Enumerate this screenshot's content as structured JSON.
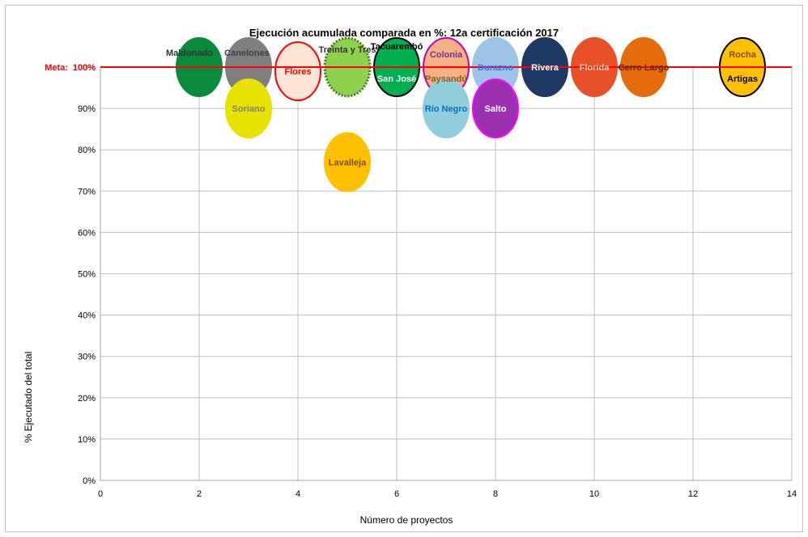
{
  "chart_data": {
    "type": "scatter",
    "title": "Ejecución  acumulada comparada en %: 12a  certificación 2017",
    "xlabel": "Número de proyectos",
    "ylabel": "% Ejecutado del total",
    "xlim": [
      0,
      14
    ],
    "ylim": [
      0,
      100
    ],
    "x_ticks": [
      "0",
      "2",
      "4",
      "6",
      "8",
      "10",
      "12",
      "14"
    ],
    "y_ticks": [
      "0%",
      "10%",
      "20%",
      "30%",
      "40%",
      "50%",
      "60%",
      "70%",
      "80%",
      "90%",
      "100%"
    ],
    "grid": true,
    "reference_line": {
      "label": "Meta:",
      "value_label": "100%",
      "y": 100,
      "color": "#ff0000"
    },
    "points": [
      {
        "name": "Maldonado",
        "x": 2,
        "y": 100,
        "fill": "#0a8a3c",
        "stroke": "#0a8a3c",
        "text_color": "#333333"
      },
      {
        "name": "Canelones",
        "x": 3,
        "y": 100,
        "fill": "#7f7f7f",
        "stroke": "#7f7f7f",
        "text_color": "#404040"
      },
      {
        "name": "Soriano",
        "x": 3,
        "y": 90,
        "fill": "#e8e200",
        "stroke": "#e8e200",
        "text_color": "#7f7f7f"
      },
      {
        "name": "Flores",
        "x": 4,
        "y": 99,
        "fill": "#fce4d6",
        "stroke": "#ff0000",
        "text_color": "#ff0000"
      },
      {
        "name": "Treinta y Tres",
        "x": 5,
        "y": 100,
        "fill": "#8fd14f",
        "stroke": "#3a7a1a",
        "stroke_style": "dotted",
        "text_color": "#333333"
      },
      {
        "name": "Lavalleja",
        "x": 5,
        "y": 77,
        "fill": "#ffc000",
        "stroke": "#ffc000",
        "text_color": "#7f4f00"
      },
      {
        "name": "Tacuarembó",
        "x": 6,
        "y": 100,
        "fill": "#00b050",
        "stroke": "#000000",
        "text_color": "#000000"
      },
      {
        "name": "San José",
        "x": 6,
        "y": 100,
        "fill": "#00b050",
        "stroke": "#000000",
        "text_color": "#ffffff"
      },
      {
        "name": "Colonia",
        "x": 7,
        "y": 100,
        "fill": "#f4b183",
        "stroke": "#c000c0",
        "text_color": "#7030a0"
      },
      {
        "name": "Paysandú",
        "x": 7,
        "y": 100,
        "fill": "#f4b183",
        "stroke": "#c000c0",
        "text_color": "#8a5a1a"
      },
      {
        "name": "Río Negro",
        "x": 7,
        "y": 90,
        "fill": "#92cddc",
        "stroke": "#92cddc",
        "text_color": "#0070c0"
      },
      {
        "name": "Durazno",
        "x": 8,
        "y": 100,
        "fill": "#9dc3e6",
        "stroke": "#9dc3e6",
        "text_color": "#2e75ff"
      },
      {
        "name": "Salto",
        "x": 8,
        "y": 90,
        "fill": "#9b30b0",
        "stroke": "#ff00ff",
        "text_color": "#ffffff"
      },
      {
        "name": "Rivera",
        "x": 9,
        "y": 100,
        "fill": "#1f3864",
        "stroke": "#1f3864",
        "text_color": "#ffffff"
      },
      {
        "name": "Florida",
        "x": 10,
        "y": 100,
        "fill": "#e8502a",
        "stroke": "#e8502a",
        "text_color": "#f8cbad"
      },
      {
        "name": "Cerro Largo",
        "x": 11,
        "y": 100,
        "fill": "#e46c0a",
        "stroke": "#e46c0a",
        "text_color": "#5a2a00"
      },
      {
        "name": "Rocha",
        "x": 13,
        "y": 100,
        "fill": "#ffc000",
        "stroke": "#000000",
        "text_color": "#7f4f00"
      },
      {
        "name": "Artigas",
        "x": 13,
        "y": 100,
        "fill": "#ffc000",
        "stroke": "#000000",
        "text_color": "#000000"
      }
    ]
  }
}
